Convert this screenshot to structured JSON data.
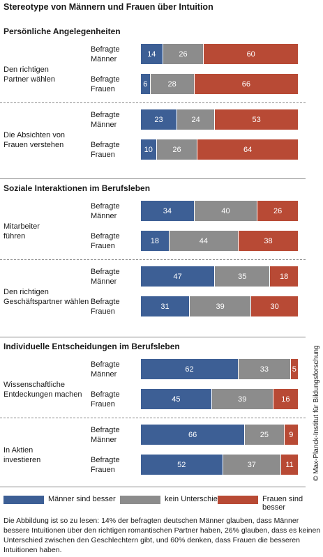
{
  "chart_data": {
    "type": "bar",
    "orientation": "horizontal",
    "stacked": true,
    "title": "Stereotype von Männern und Frauen über Intuition",
    "xlim": [
      0,
      100
    ],
    "series": [
      {
        "name": "Männer sind besser",
        "color": "#3d5f95"
      },
      {
        "name": "kein Unterschied",
        "color": "#8c8c8c"
      },
      {
        "name": "Frauen sind besser",
        "color": "#b84a35"
      }
    ],
    "sections": [
      {
        "title": "Persönliche Angelegenheiten",
        "items": [
          {
            "label": "Den richtigen\nPartner wählen",
            "rows": [
              {
                "label": "Befragte\nMänner",
                "values": [
                  14,
                  26,
                  60
                ]
              },
              {
                "label": "Befragte\nFrauen",
                "values": [
                  6,
                  28,
                  66
                ]
              }
            ]
          },
          {
            "label": "Die Absichten von\nFrauen verstehen",
            "rows": [
              {
                "label": "Befragte\nMänner",
                "values": [
                  23,
                  24,
                  53
                ]
              },
              {
                "label": "Befragte\nFrauen",
                "values": [
                  10,
                  26,
                  64
                ]
              }
            ]
          }
        ]
      },
      {
        "title": "Soziale Interaktionen im Berufsleben",
        "items": [
          {
            "label": "Mitarbeiter\nführen",
            "rows": [
              {
                "label": "Befragte\nMänner",
                "values": [
                  34,
                  40,
                  26
                ]
              },
              {
                "label": "Befragte\nFrauen",
                "values": [
                  18,
                  44,
                  38
                ]
              }
            ]
          },
          {
            "label": "Den richtigen\nGeschäftspartner wählen",
            "rows": [
              {
                "label": "Befragte\nMänner",
                "values": [
                  47,
                  35,
                  18
                ]
              },
              {
                "label": "Befragte\nFrauen",
                "values": [
                  31,
                  39,
                  30
                ]
              }
            ]
          }
        ]
      },
      {
        "title": "Individuelle Entscheidungen im Berufsleben",
        "items": [
          {
            "label": "Wissenschaftliche\nEntdeckungen machen",
            "rows": [
              {
                "label": "Befragte\nMänner",
                "values": [
                  62,
                  33,
                  5
                ]
              },
              {
                "label": "Befragte\nFrauen",
                "values": [
                  45,
                  39,
                  16
                ]
              }
            ]
          },
          {
            "label": "In Aktien\ninvestieren",
            "rows": [
              {
                "label": "Befragte\nMänner",
                "values": [
                  66,
                  25,
                  9
                ]
              },
              {
                "label": "Befragte\nFrauen",
                "values": [
                  52,
                  37,
                  11
                ]
              }
            ]
          }
        ]
      }
    ],
    "note": "Die Abbildung ist so zu lesen: 14% der befragten deutschen Männer glauben, dass Männer bessere Intuitionen über den richtigen romantischen Partner haben, 26% glauben, dass es keinen Unterschied zwischen den Geschlechtern gibt, und 60% denken, dass Frauen die besseren Intuitionen haben.",
    "source": "© Max-Planck-Institut für Bildungsforschung"
  }
}
